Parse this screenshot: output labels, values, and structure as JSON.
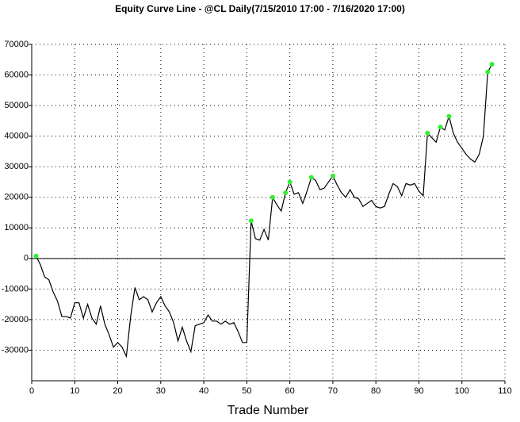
{
  "chart_data": {
    "type": "line",
    "title": "Equity Curve Line - @CL Daily(7/15/2010 17:00 - 7/16/2020 17:00)",
    "x_label": "Trade Number",
    "x": [
      1,
      2,
      3,
      4,
      5,
      6,
      7,
      8,
      9,
      10,
      11,
      12,
      13,
      14,
      15,
      16,
      17,
      18,
      19,
      20,
      21,
      22,
      23,
      24,
      25,
      26,
      27,
      28,
      29,
      30,
      31,
      32,
      33,
      34,
      35,
      36,
      37,
      38,
      39,
      40,
      41,
      42,
      43,
      44,
      45,
      46,
      47,
      48,
      49,
      50,
      51,
      52,
      53,
      54,
      55,
      56,
      57,
      58,
      59,
      60,
      61,
      62,
      63,
      64,
      65,
      66,
      67,
      68,
      69,
      70,
      71,
      72,
      73,
      74,
      75,
      76,
      77,
      78,
      79,
      80,
      81,
      82,
      83,
      84,
      85,
      86,
      87,
      88,
      89,
      90,
      91,
      92,
      93,
      94,
      95,
      96,
      97,
      98,
      99,
      100,
      101,
      102,
      103,
      104,
      105,
      106,
      107
    ],
    "series": [
      {
        "color": "#000000",
        "values": [
          800,
          -2000,
          -6000,
          -7000,
          -11000,
          -14000,
          -19000,
          -19000,
          -19500,
          -14500,
          -14500,
          -19500,
          -15000,
          -19500,
          -21500,
          -15500,
          -21500,
          -25000,
          -29000,
          -27500,
          -29000,
          -32000,
          -19000,
          -9500,
          -13500,
          -12500,
          -13500,
          -17500,
          -14500,
          -12500,
          -15500,
          -17500,
          -21000,
          -27000,
          -22500,
          -27000,
          -30500,
          -22000,
          -21500,
          -21000,
          -18500,
          -20500,
          -20500,
          -21500,
          -20500,
          -21500,
          -21000,
          -24000,
          -27500,
          -27500,
          12300,
          6500,
          6000,
          9500,
          6000,
          20000,
          17500,
          15500,
          21500,
          25000,
          21000,
          21500,
          18000,
          22000,
          26500,
          25500,
          22500,
          23000,
          25000,
          27000,
          24000,
          21500,
          20000,
          22500,
          20000,
          19500,
          17000,
          18000,
          19000,
          17000,
          16500,
          17000,
          21000,
          24500,
          23500,
          20500,
          24500,
          24000,
          24500,
          22000,
          20500,
          41000,
          39500,
          38000,
          43000,
          42000,
          46500,
          41000,
          38000,
          36000,
          34000,
          32500,
          31500,
          34000,
          40000,
          61000,
          63500
        ]
      }
    ],
    "highlights": {
      "color": "#33ee33",
      "x": [
        1,
        51,
        56,
        59,
        60,
        65,
        70,
        92,
        95,
        97,
        106,
        107
      ],
      "values": [
        800,
        12300,
        20000,
        21500,
        25000,
        26500,
        27000,
        41000,
        43000,
        46500,
        61000,
        63500
      ]
    },
    "xlim": [
      0,
      110
    ],
    "xticks": [
      0,
      10,
      20,
      30,
      40,
      50,
      60,
      70,
      80,
      90,
      100,
      110
    ],
    "ylim": [
      -40000,
      70000
    ],
    "yticks": [
      -30000,
      -20000,
      -10000,
      0,
      10000,
      20000,
      30000,
      40000,
      50000,
      60000,
      70000
    ],
    "grid": true,
    "zero_line": true
  }
}
